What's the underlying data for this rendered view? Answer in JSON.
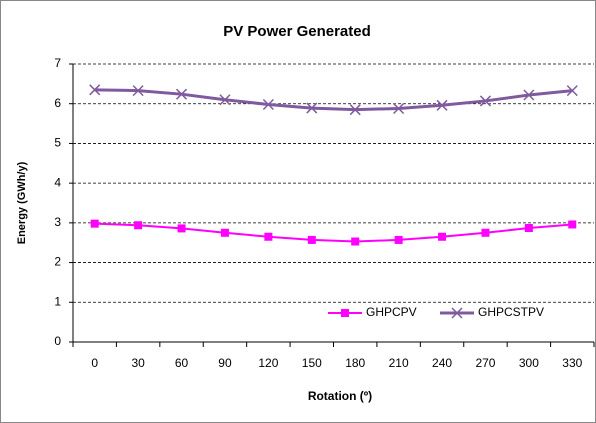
{
  "chart_data": {
    "type": "line",
    "title": "PV Power Generated",
    "x_label": "Rotation (º)",
    "y_label": "Energy (GWh/y)",
    "categories": [
      "0",
      "30",
      "60",
      "90",
      "120",
      "150",
      "180",
      "210",
      "240",
      "270",
      "300",
      "330"
    ],
    "series": [
      {
        "name": "GHPCPV",
        "color": "#ff00ff",
        "marker": "square",
        "values": [
          2.98,
          2.94,
          2.86,
          2.75,
          2.65,
          2.57,
          2.53,
          2.57,
          2.65,
          2.75,
          2.87,
          2.96
        ]
      },
      {
        "name": "GHPCSTPV",
        "color": "#7f5a9e",
        "marker": "x",
        "values": [
          6.35,
          6.33,
          6.24,
          6.1,
          5.98,
          5.89,
          5.85,
          5.88,
          5.96,
          6.07,
          6.22,
          6.33
        ]
      }
    ],
    "ylim": [
      0,
      7
    ],
    "yticks": [
      0,
      1,
      2,
      3,
      4,
      5,
      6,
      7
    ],
    "grid": true,
    "legend": "bottom-right"
  }
}
